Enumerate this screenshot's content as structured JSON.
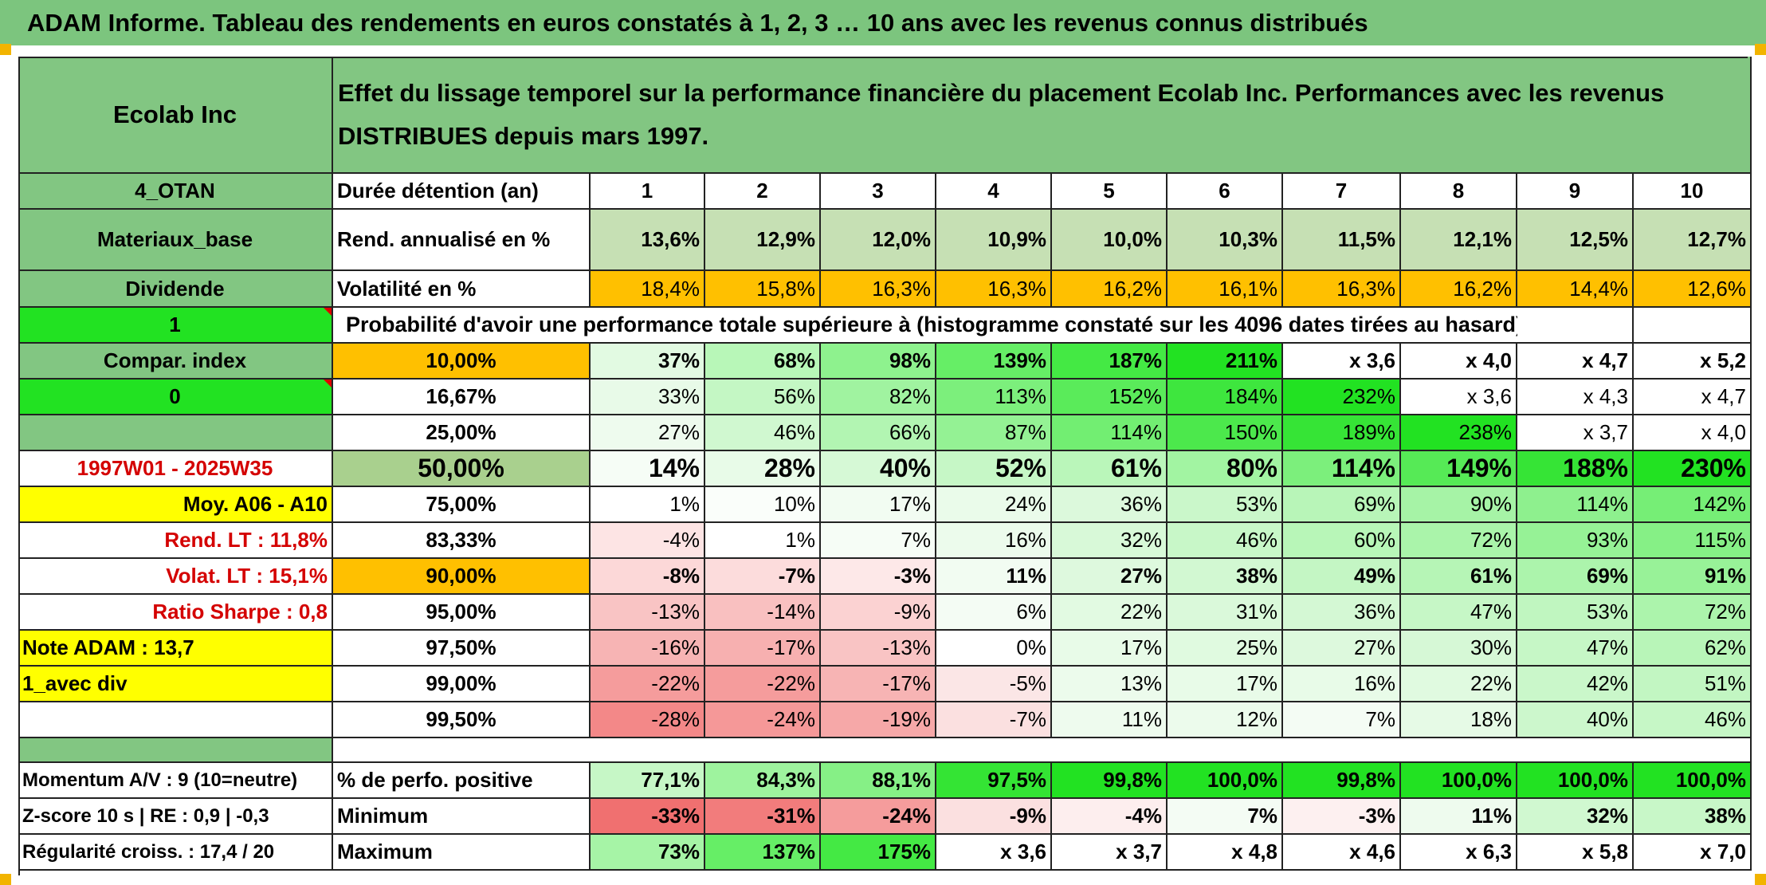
{
  "header": {
    "title": "ADAM Informe. Tableau des rendements en euros constatés à 1, 2, 3 … 10 ans avec les revenus connus distribués"
  },
  "table": {
    "company": "Ecolab Inc",
    "description": "Effet du lissage temporel sur la performance financière du placement Ecolab Inc. Performances avec les revenus DISTRIBUES depuis mars 1997.",
    "rows": [
      {
        "left": "4_OTAN",
        "label": "Durée détention (an)",
        "values": [
          "1",
          "2",
          "3",
          "4",
          "5",
          "6",
          "7",
          "8",
          "9",
          "10"
        ]
      },
      {
        "left": "Materiaux_base",
        "label": "Rend. annualisé en %",
        "values": [
          "13,6%",
          "12,9%",
          "12,0%",
          "10,9%",
          "10,0%",
          "10,3%",
          "11,5%",
          "12,1%",
          "12,5%",
          "12,7%"
        ]
      },
      {
        "left": "Dividende",
        "label": "Volatilité en %",
        "values": [
          "18,4%",
          "15,8%",
          "16,3%",
          "16,3%",
          "16,2%",
          "16,1%",
          "16,3%",
          "16,2%",
          "14,4%",
          "12,6%"
        ]
      },
      {
        "left": "1",
        "label": "Probabilité d'avoir une performance totale supérieure à (histogramme constaté sur les 4096 dates tirées au hasard)",
        "values": []
      },
      {
        "left": "Compar. index",
        "label": "10,00%",
        "values": [
          "37%",
          "68%",
          "98%",
          "139%",
          "187%",
          "211%",
          "x 3,6",
          "x 4,0",
          "x 4,7",
          "x 5,2"
        ]
      },
      {
        "left": "0",
        "label": "16,67%",
        "values": [
          "33%",
          "56%",
          "82%",
          "113%",
          "152%",
          "184%",
          "232%",
          "x 3,6",
          "x 4,3",
          "x 4,7"
        ]
      },
      {
        "left": "",
        "label": "25,00%",
        "values": [
          "27%",
          "46%",
          "66%",
          "87%",
          "114%",
          "150%",
          "189%",
          "238%",
          "x 3,7",
          "x 4,0"
        ]
      },
      {
        "left": "1997W01 - 2025W35",
        "label": "50,00%",
        "values": [
          "14%",
          "28%",
          "40%",
          "52%",
          "61%",
          "80%",
          "114%",
          "149%",
          "188%",
          "230%"
        ]
      },
      {
        "left": "Moy. A06 - A10",
        "label": "75,00%",
        "values": [
          "1%",
          "10%",
          "17%",
          "24%",
          "36%",
          "53%",
          "69%",
          "90%",
          "114%",
          "142%"
        ]
      },
      {
        "left": "Rend. LT :   11,8%",
        "label": "83,33%",
        "values": [
          "-4%",
          "1%",
          "7%",
          "16%",
          "32%",
          "46%",
          "60%",
          "72%",
          "93%",
          "115%"
        ]
      },
      {
        "left": "Volat. LT :   15,1%",
        "label": "90,00%",
        "values": [
          "-8%",
          "-7%",
          "-3%",
          "11%",
          "27%",
          "38%",
          "49%",
          "61%",
          "69%",
          "91%"
        ]
      },
      {
        "left": "Ratio Sharpe :   0,8",
        "label": "95,00%",
        "values": [
          "-13%",
          "-14%",
          "-9%",
          "6%",
          "22%",
          "31%",
          "36%",
          "47%",
          "53%",
          "72%"
        ]
      },
      {
        "left": "Note ADAM : 13,7",
        "label": "97,50%",
        "values": [
          "-16%",
          "-17%",
          "-13%",
          "0%",
          "17%",
          "25%",
          "27%",
          "30%",
          "47%",
          "62%"
        ]
      },
      {
        "left": "1_avec div",
        "label": "99,00%",
        "values": [
          "-22%",
          "-22%",
          "-17%",
          "-5%",
          "13%",
          "17%",
          "16%",
          "22%",
          "42%",
          "51%"
        ]
      },
      {
        "left": "",
        "label": "99,50%",
        "values": [
          "-28%",
          "-24%",
          "-19%",
          "-7%",
          "11%",
          "12%",
          "7%",
          "18%",
          "40%",
          "46%"
        ]
      },
      {
        "left": "",
        "label": "",
        "values": []
      },
      {
        "left": "Momentum A/V : 9 (10=neutre)",
        "label": "% de perfo. positive",
        "values": [
          "77,1%",
          "84,3%",
          "88,1%",
          "97,5%",
          "99,8%",
          "100,0%",
          "99,8%",
          "100,0%",
          "100,0%",
          "100,0%"
        ]
      },
      {
        "left": "Z-score 10 s | RE : 0,9 | -0,3",
        "label": "Minimum",
        "values": [
          "-33%",
          "-31%",
          "-24%",
          "-9%",
          "-4%",
          "7%",
          "-3%",
          "11%",
          "32%",
          "38%"
        ]
      },
      {
        "left": "Régularité croiss. : 17,4 / 20",
        "label": "Maximum",
        "values": [
          "73%",
          "137%",
          "175%",
          "x 3,6",
          "x 3,7",
          "x 4,8",
          "x 4,6",
          "x 6,3",
          "x 5,8",
          "x 7,0"
        ]
      }
    ]
  },
  "colors": {
    "header_bg": "#7cc57e",
    "left_bg": "#82c682",
    "bright_green": "#22e222",
    "yellow": "#ffff00",
    "orange": "#ffc000",
    "light_green": "#c6e0b4",
    "red_text": "#d40000"
  },
  "cell_colors": [
    [
      null,
      null,
      null,
      null,
      null,
      null,
      null,
      null,
      null,
      null
    ],
    [
      "#c6e0b4",
      "#c6e0b4",
      "#c6e0b4",
      "#c6e0b4",
      "#c6e0b4",
      "#c6e0b4",
      "#c6e0b4",
      "#c6e0b4",
      "#c6e0b4",
      "#c6e0b4"
    ],
    [
      "#ffc000",
      "#ffc000",
      "#ffc000",
      "#ffc000",
      "#ffc000",
      "#ffc000",
      "#ffc000",
      "#ffc000",
      "#ffc000",
      "#ffc000"
    ],
    [],
    [
      "#e2fae2",
      "#b8f7b8",
      "#8ef28e",
      "#66ee66",
      "#44e944",
      "#22e222",
      null,
      null,
      null,
      null
    ],
    [
      "#e8fae8",
      "#c4f7c4",
      "#a0f3a0",
      "#7cef7c",
      "#5aeb5a",
      "#3ee63e",
      "#22e222",
      null,
      null,
      null
    ],
    [
      "#eefbee",
      "#d0f8d0",
      "#b2f5b2",
      "#94f294",
      "#72ee72",
      "#4ce84c",
      "#36e436",
      "#22e222",
      null,
      null
    ],
    [
      "#f6fdf6",
      "#e8fbe8",
      "#d6f9d6",
      "#c6f7c6",
      "#baf6ba",
      "#a2f4a2",
      "#7cef7c",
      "#56ea56",
      "#36e436",
      "#22e222"
    ],
    [
      null,
      "#fafefa",
      "#f2fcf2",
      "#eafbea",
      "#dcf9dc",
      "#caf7ca",
      "#b8f5b8",
      "#a6f3a6",
      "#8ef08e",
      "#76ee76"
    ],
    [
      "#fde4e4",
      null,
      "#f6fdf6",
      "#ecfbec",
      "#d8f9d8",
      "#c8f7c8",
      "#b8f6b8",
      "#aaf4aa",
      "#96f296",
      "#86f086"
    ],
    [
      "#fcd8d8",
      "#fcdcdc",
      "#fde8e8",
      "#f2fcf2",
      "#def9de",
      "#d2f8d2",
      "#c4f6c4",
      "#b6f5b6",
      "#acf4ac",
      "#98f298"
    ],
    [
      "#f9c4c4",
      "#f9c0c0",
      "#fbd2d2",
      "#f4fcf4",
      "#e2fae2",
      "#daf9da",
      "#d4f8d4",
      "#c6f7c6",
      "#c0f6c0",
      "#acf4ac"
    ],
    [
      "#f7b4b4",
      "#f7b0b0",
      "#f9c4c4",
      null,
      "#e8fbe8",
      "#e0fae0",
      "#ddf9dd",
      "#d6f8d6",
      "#c6f7c6",
      "#b8f5b8"
    ],
    [
      "#f59c9c",
      "#f59c9c",
      "#f7b4b4",
      "#fbe6e6",
      "#ecfbec",
      "#e8fbe8",
      "#e8fbe8",
      "#e0fae0",
      "#caf7ca",
      "#c2f6c2"
    ],
    [
      "#f38888",
      "#f59898",
      "#f6a8a8",
      "#fbe0e0",
      "#eefbee",
      "#ecfbec",
      "#f4fcf4",
      "#e6fae6",
      "#ccf7cc",
      "#c6f7c6"
    ],
    [],
    [
      "#c6f7c6",
      "#9ef39e",
      "#86f086",
      "#34e434",
      "#22e222",
      "#22e222",
      "#22e222",
      "#22e222",
      "#22e222",
      "#22e222"
    ],
    [
      "#f07070",
      "#f27c7c",
      "#f59c9c",
      "#fbe0e0",
      "#fdeeee",
      "#f4fcf4",
      "#fdf0f0",
      "#eefbee",
      "#d0f8d0",
      "#c8f7c8"
    ],
    [
      "#a6f4a6",
      "#66ee66",
      "#44e944",
      null,
      null,
      null,
      null,
      null,
      null,
      null
    ]
  ]
}
